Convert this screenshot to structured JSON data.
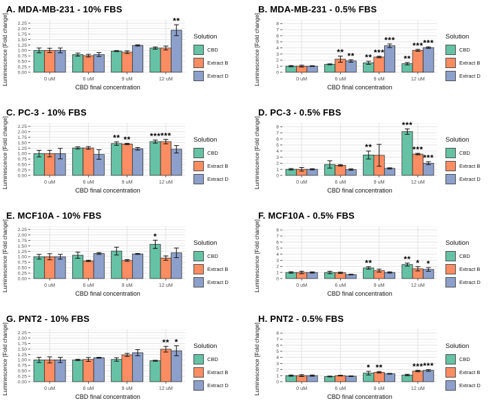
{
  "figure": {
    "legend_title": "Solution",
    "series_names": [
      "CBD",
      "Extract B",
      "Extract D"
    ],
    "series_colors": [
      "#66c2a5",
      "#fc8d62",
      "#8da0cb"
    ],
    "xlabel": "CBD final concentration",
    "ylabel": "Luminescence [Fold change]",
    "categories": [
      "0 uM",
      "6 uM",
      "9 uM",
      "12 uM"
    ]
  },
  "chart_data": [
    {
      "type": "bar",
      "title": "A. MDA-MB-231 - 10% FBS",
      "xlabel": "CBD final concentration",
      "ylabel": "Luminescence [Fold change]",
      "categories": [
        "0 uM",
        "6 uM",
        "9 uM",
        "12 uM"
      ],
      "ylim": [
        0,
        2.25
      ],
      "ydomain": 2.4,
      "yticks": [
        0,
        0.25,
        0.5,
        0.75,
        1.0,
        1.25,
        1.5,
        1.75,
        2.0,
        2.25
      ],
      "ytick_labels": [
        "0.00",
        "0.25",
        "0.50",
        "0.75",
        "1.00",
        "1.25",
        "1.50",
        "1.75",
        "2.00",
        "2.25"
      ],
      "series": [
        {
          "name": "CBD",
          "values": [
            1.0,
            0.81,
            0.97,
            1.11
          ],
          "errors": [
            0.11,
            0.07,
            0.02,
            0.05
          ],
          "sig": [
            "",
            "",
            "",
            ""
          ]
        },
        {
          "name": "Extract B",
          "values": [
            1.0,
            0.76,
            0.92,
            1.11
          ],
          "errors": [
            0.1,
            0.06,
            0.06,
            0.09
          ],
          "sig": [
            "",
            "",
            "",
            ""
          ]
        },
        {
          "name": "Extract D",
          "values": [
            1.0,
            0.81,
            1.23,
            1.93
          ],
          "errors": [
            0.11,
            0.09,
            0.03,
            0.25
          ],
          "sig": [
            "",
            "",
            "",
            "**"
          ]
        }
      ]
    },
    {
      "type": "bar",
      "title": "B. MDA-MB-231 - 0.5% FBS",
      "xlabel": "CBD final concentration",
      "ylabel": "Luminescence [Fold change]",
      "categories": [
        "0 uM",
        "6 uM",
        "9 uM",
        "12 uM"
      ],
      "ylim": [
        0,
        8
      ],
      "ydomain": 8.6,
      "yticks": [
        0,
        1,
        2,
        3,
        4,
        5,
        6,
        7,
        8
      ],
      "ytick_labels": [
        "0",
        "1",
        "2",
        "3",
        "4",
        "5",
        "6",
        "7",
        "8"
      ],
      "series": [
        {
          "name": "CBD",
          "values": [
            1.0,
            1.3,
            1.55,
            1.4
          ],
          "errors": [
            0.1,
            0.07,
            0.25,
            0.2
          ],
          "sig": [
            "",
            "",
            "**",
            "**"
          ]
        },
        {
          "name": "Extract B",
          "values": [
            1.0,
            2.15,
            2.5,
            3.6
          ],
          "errors": [
            0.15,
            0.5,
            0.12,
            0.15
          ],
          "sig": [
            "",
            "**",
            "***",
            "***"
          ]
        },
        {
          "name": "Extract D",
          "values": [
            1.0,
            1.85,
            4.35,
            4.05
          ],
          "errors": [
            0.06,
            0.2,
            0.3,
            0.12
          ],
          "sig": [
            "",
            "**",
            "***",
            "***"
          ]
        }
      ]
    },
    {
      "type": "bar",
      "title": "C. PC-3 - 10% FBS",
      "xlabel": "CBD final concentration",
      "ylabel": "Luminescence [Fold change]",
      "categories": [
        "0 uM",
        "6 uM",
        "9 uM",
        "12 uM"
      ],
      "ylim": [
        0,
        2.25
      ],
      "ydomain": 2.4,
      "yticks": [
        0,
        0.25,
        0.5,
        0.75,
        1.0,
        1.25,
        1.5,
        1.75,
        2.0,
        2.25
      ],
      "ytick_labels": [
        "0.00",
        "0.25",
        "0.50",
        "0.75",
        "1.00",
        "1.25",
        "1.50",
        "1.75",
        "2.00",
        "2.25"
      ],
      "series": [
        {
          "name": "CBD",
          "values": [
            1.0,
            1.26,
            1.46,
            1.55
          ],
          "errors": [
            0.15,
            0.05,
            0.08,
            0.07
          ],
          "sig": [
            "",
            "",
            "**",
            "***"
          ]
        },
        {
          "name": "Extract B",
          "values": [
            1.0,
            1.26,
            1.44,
            1.55
          ],
          "errors": [
            0.15,
            0.06,
            0.03,
            0.1
          ],
          "sig": [
            "",
            "",
            "**",
            "***"
          ]
        },
        {
          "name": "Extract D",
          "values": [
            1.0,
            0.96,
            1.22,
            1.2
          ],
          "errors": [
            0.24,
            0.22,
            0.06,
            0.17
          ],
          "sig": [
            "",
            "",
            "",
            ""
          ]
        }
      ]
    },
    {
      "type": "bar",
      "title": "D. PC-3 - 0.5% FBS",
      "xlabel": "CBD final concentration",
      "ylabel": "Luminescence [Fold change]",
      "categories": [
        "0 uM",
        "6 uM",
        "9 uM",
        "12 uM"
      ],
      "ylim": [
        0,
        8
      ],
      "ydomain": 8.6,
      "yticks": [
        0,
        1,
        2,
        3,
        4,
        5,
        6,
        7,
        8
      ],
      "ytick_labels": [
        "0",
        "1",
        "2",
        "3",
        "4",
        "5",
        "6",
        "7",
        "8"
      ],
      "series": [
        {
          "name": "CBD",
          "values": [
            1.0,
            1.8,
            3.35,
            7.2
          ],
          "errors": [
            0.12,
            0.6,
            0.65,
            0.45
          ],
          "sig": [
            "",
            "",
            "**",
            "***"
          ]
        },
        {
          "name": "Extract B",
          "values": [
            1.0,
            1.65,
            3.3,
            3.5
          ],
          "errors": [
            0.3,
            0.12,
            1.8,
            0.12
          ],
          "sig": [
            "",
            "",
            "",
            "***"
          ]
        },
        {
          "name": "Extract D",
          "values": [
            1.0,
            0.95,
            1.15,
            2.0
          ],
          "errors": [
            0.1,
            0.12,
            0.1,
            0.25
          ],
          "sig": [
            "",
            "",
            "",
            "***"
          ]
        }
      ]
    },
    {
      "type": "bar",
      "title": "E. MCF10A - 10% FBS",
      "xlabel": "CBD final concentration",
      "ylabel": "Luminescence [Fold change]",
      "categories": [
        "0 uM",
        "6 uM",
        "9 uM",
        "12 uM"
      ],
      "ylim": [
        0,
        2.25
      ],
      "ydomain": 2.4,
      "yticks": [
        0,
        0.25,
        0.5,
        0.75,
        1.0,
        1.25,
        1.5,
        1.75,
        2.0,
        2.25
      ],
      "ytick_labels": [
        "0.00",
        "0.25",
        "0.50",
        "0.75",
        "1.00",
        "1.25",
        "1.50",
        "1.75",
        "2.00",
        "2.25"
      ],
      "series": [
        {
          "name": "CBD",
          "values": [
            1.0,
            1.07,
            1.26,
            1.57
          ],
          "errors": [
            0.11,
            0.14,
            0.18,
            0.19
          ],
          "sig": [
            "",
            "",
            "",
            "*"
          ]
        },
        {
          "name": "Extract B",
          "values": [
            1.0,
            0.81,
            0.83,
            0.94
          ],
          "errors": [
            0.14,
            0.03,
            0.04,
            0.1
          ],
          "sig": [
            "",
            "",
            "",
            ""
          ]
        },
        {
          "name": "Extract D",
          "values": [
            1.0,
            1.15,
            1.13,
            1.18
          ],
          "errors": [
            0.11,
            0.04,
            0.02,
            0.22
          ],
          "sig": [
            "",
            "",
            "",
            ""
          ]
        }
      ]
    },
    {
      "type": "bar",
      "title": "F. MCF10A - 0.5% FBS",
      "xlabel": "CBD final concentration",
      "ylabel": "Luminescence [Fold change]",
      "categories": [
        "0 uM",
        "6 uM",
        "9 uM",
        "12 uM"
      ],
      "ylim": [
        0,
        8
      ],
      "ydomain": 8.6,
      "yticks": [
        0,
        1,
        2,
        3,
        4,
        5,
        6,
        7,
        8
      ],
      "ytick_labels": [
        "0",
        "1",
        "2",
        "3",
        "4",
        "5",
        "6",
        "7",
        "8"
      ],
      "series": [
        {
          "name": "CBD",
          "values": [
            1.0,
            1.0,
            1.75,
            2.3
          ],
          "errors": [
            0.12,
            0.2,
            0.2,
            0.25
          ],
          "sig": [
            "",
            "",
            "**",
            "**"
          ]
        },
        {
          "name": "Extract B",
          "values": [
            1.0,
            0.95,
            1.3,
            1.6
          ],
          "errors": [
            0.2,
            0.1,
            0.25,
            0.35
          ],
          "sig": [
            "",
            "",
            "",
            "*"
          ]
        },
        {
          "name": "Extract D",
          "values": [
            1.0,
            0.65,
            1.0,
            1.5
          ],
          "errors": [
            0.1,
            0.06,
            0.1,
            0.3
          ],
          "sig": [
            "",
            "",
            "",
            "*"
          ]
        }
      ]
    },
    {
      "type": "bar",
      "title": "G. PNT2 - 10% FBS",
      "xlabel": "CBD final concentration",
      "ylabel": "Luminescence [Fold change]",
      "categories": [
        "0 uM",
        "6 uM",
        "9 uM",
        "12 uM"
      ],
      "ylim": [
        0,
        2.25
      ],
      "ydomain": 2.4,
      "yticks": [
        0,
        0.25,
        0.5,
        0.75,
        1.0,
        1.25,
        1.5,
        1.75,
        2.0,
        2.25
      ],
      "ytick_labels": [
        "0.00",
        "0.25",
        "0.50",
        "0.75",
        "1.00",
        "1.25",
        "1.50",
        "1.75",
        "2.00",
        "2.25"
      ],
      "series": [
        {
          "name": "CBD",
          "values": [
            1.0,
            1.0,
            1.02,
            0.96
          ],
          "errors": [
            0.12,
            0.03,
            0.08,
            0.02
          ],
          "sig": [
            "",
            "",
            "",
            ""
          ]
        },
        {
          "name": "Extract B",
          "values": [
            1.0,
            1.02,
            1.23,
            1.49
          ],
          "errors": [
            0.14,
            0.09,
            0.07,
            0.13
          ],
          "sig": [
            "",
            "",
            "",
            "**"
          ]
        },
        {
          "name": "Extract D",
          "values": [
            1.0,
            1.1,
            1.33,
            1.42
          ],
          "errors": [
            0.12,
            0.02,
            0.14,
            0.23
          ],
          "sig": [
            "",
            "",
            "",
            "*"
          ]
        }
      ]
    },
    {
      "type": "bar",
      "title": "H. PNT2 - 0.5% FBS",
      "xlabel": "CBD final concentration",
      "ylabel": "Luminescence [Fold change]",
      "categories": [
        "0 uM",
        "6 uM",
        "9 uM",
        "12 uM"
      ],
      "ylim": [
        0,
        8
      ],
      "ydomain": 8.6,
      "yticks": [
        0,
        1,
        2,
        3,
        4,
        5,
        6,
        7,
        8
      ],
      "ytick_labels": [
        "0",
        "1",
        "2",
        "3",
        "4",
        "5",
        "6",
        "7",
        "8"
      ],
      "series": [
        {
          "name": "CBD",
          "values": [
            1.0,
            0.85,
            1.4,
            1.1
          ],
          "errors": [
            0.1,
            0.06,
            0.3,
            0.12
          ],
          "sig": [
            "",
            "",
            "*",
            ""
          ]
        },
        {
          "name": "Extract B",
          "values": [
            1.0,
            1.0,
            1.55,
            1.75
          ],
          "errors": [
            0.15,
            0.06,
            0.12,
            0.12
          ],
          "sig": [
            "",
            "",
            "**",
            "***"
          ]
        },
        {
          "name": "Extract D",
          "values": [
            1.0,
            0.9,
            1.3,
            1.85
          ],
          "errors": [
            0.1,
            0.05,
            0.06,
            0.15
          ],
          "sig": [
            "",
            "",
            "",
            "***"
          ]
        }
      ]
    }
  ]
}
